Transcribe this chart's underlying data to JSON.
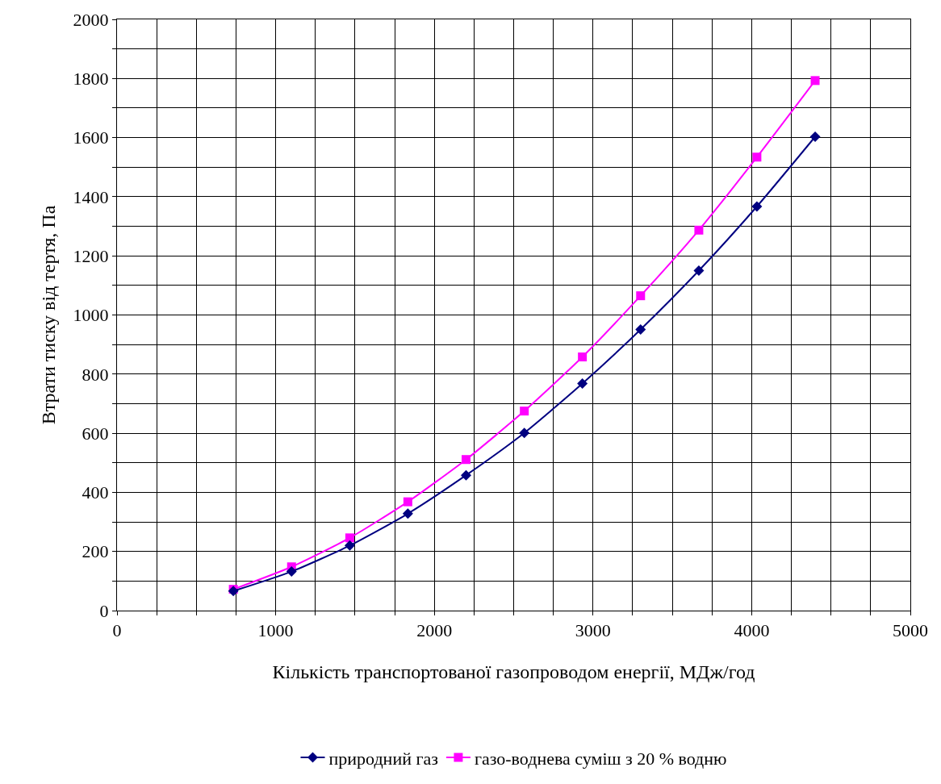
{
  "chart_data": {
    "type": "line",
    "xlabel": "Кількість транспортованої газопроводом енергії, МДж/год",
    "ylabel": "Втрати тиску від тертя, Па",
    "x": [
      733,
      1100,
      1467,
      1833,
      2200,
      2567,
      2933,
      3300,
      3667,
      4033,
      4400
    ],
    "series": [
      {
        "name": "природний газ",
        "color": "#000080",
        "marker": "diamond",
        "values": [
          66,
          132,
          220,
          328,
          458,
          601,
          768,
          951,
          1150,
          1367,
          1603
        ]
      },
      {
        "name": "газо-воднева суміш з 20 % водню",
        "color": "#ff00ff",
        "marker": "square",
        "values": [
          72,
          148,
          246,
          368,
          511,
          675,
          858,
          1065,
          1287,
          1534,
          1793
        ]
      }
    ],
    "xlim": [
      0,
      5000
    ],
    "xticks": [
      0,
      {
        "value": 250,
        "label": null
      },
      {
        "value": 500,
        "label": null
      },
      {
        "value": 750,
        "label": null
      },
      1000,
      {
        "value": 1250,
        "label": null
      },
      {
        "value": 1500,
        "label": null
      },
      {
        "value": 1750,
        "label": null
      },
      2000,
      {
        "value": 2250,
        "label": null
      },
      {
        "value": 2500,
        "label": null
      },
      {
        "value": 2750,
        "label": null
      },
      3000,
      {
        "value": 3250,
        "label": null
      },
      {
        "value": 3500,
        "label": null
      },
      {
        "value": 3750,
        "label": null
      },
      4000,
      {
        "value": 4250,
        "label": null
      },
      {
        "value": 4500,
        "label": null
      },
      {
        "value": 4750,
        "label": null
      },
      5000
    ],
    "ylim": [
      0,
      2000
    ],
    "yticks": [
      0,
      {
        "value": 100,
        "label": null
      },
      200,
      {
        "value": 300,
        "label": null
      },
      400,
      {
        "value": 500,
        "label": null
      },
      600,
      {
        "value": 700,
        "label": null
      },
      800,
      {
        "value": 900,
        "label": null
      },
      1000,
      {
        "value": 1100,
        "label": null
      },
      1200,
      {
        "value": 1300,
        "label": null
      },
      1400,
      {
        "value": 1500,
        "label": null
      },
      1600,
      {
        "value": 1700,
        "label": null
      },
      1800,
      {
        "value": 1900,
        "label": null
      },
      2000
    ],
    "grid": true,
    "legend": "bottom",
    "line_style": "solid"
  }
}
